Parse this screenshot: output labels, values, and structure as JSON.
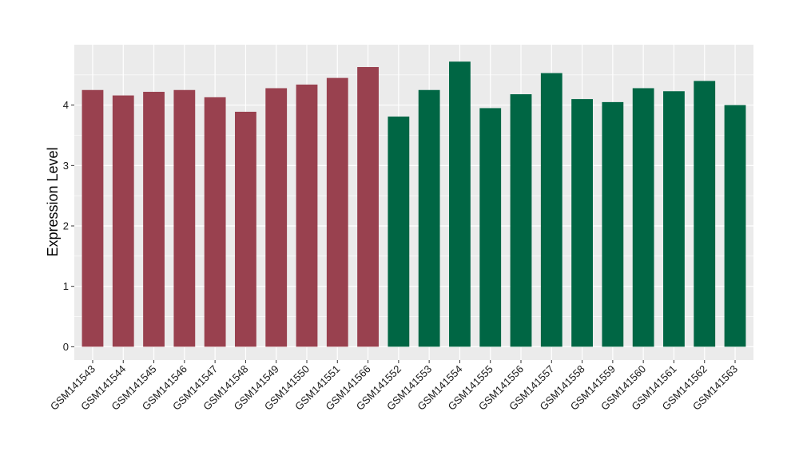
{
  "chart_data": {
    "type": "bar",
    "title": "",
    "xlabel": "",
    "ylabel": "Expression Level",
    "ylim": [
      -0.22,
      5.0
    ],
    "yticks": [
      0,
      1,
      2,
      3,
      4
    ],
    "grid": true,
    "legend": "none",
    "background": "#ebebeb",
    "gridline_color": "#ffffff",
    "categories": [
      "GSM141543",
      "GSM141544",
      "GSM141545",
      "GSM141546",
      "GSM141547",
      "GSM141548",
      "GSM141549",
      "GSM141550",
      "GSM141551",
      "GSM141566",
      "GSM141552",
      "GSM141553",
      "GSM141554",
      "GSM141555",
      "GSM141556",
      "GSM141557",
      "GSM141558",
      "GSM141559",
      "GSM141560",
      "GSM141561",
      "GSM141562",
      "GSM141563"
    ],
    "values": [
      4.25,
      4.16,
      4.22,
      4.25,
      4.13,
      3.89,
      4.28,
      4.34,
      4.45,
      4.63,
      3.81,
      4.25,
      4.72,
      3.95,
      4.18,
      4.53,
      4.1,
      4.05,
      4.28,
      4.23,
      4.4,
      4.0
    ],
    "bar_colors": [
      "#99414f",
      "#99414f",
      "#99414f",
      "#99414f",
      "#99414f",
      "#99414f",
      "#99414f",
      "#99414f",
      "#99414f",
      "#99414f",
      "#006644",
      "#006644",
      "#006644",
      "#006644",
      "#006644",
      "#006644",
      "#006644",
      "#006644",
      "#006644",
      "#006644",
      "#006644",
      "#006644"
    ]
  }
}
